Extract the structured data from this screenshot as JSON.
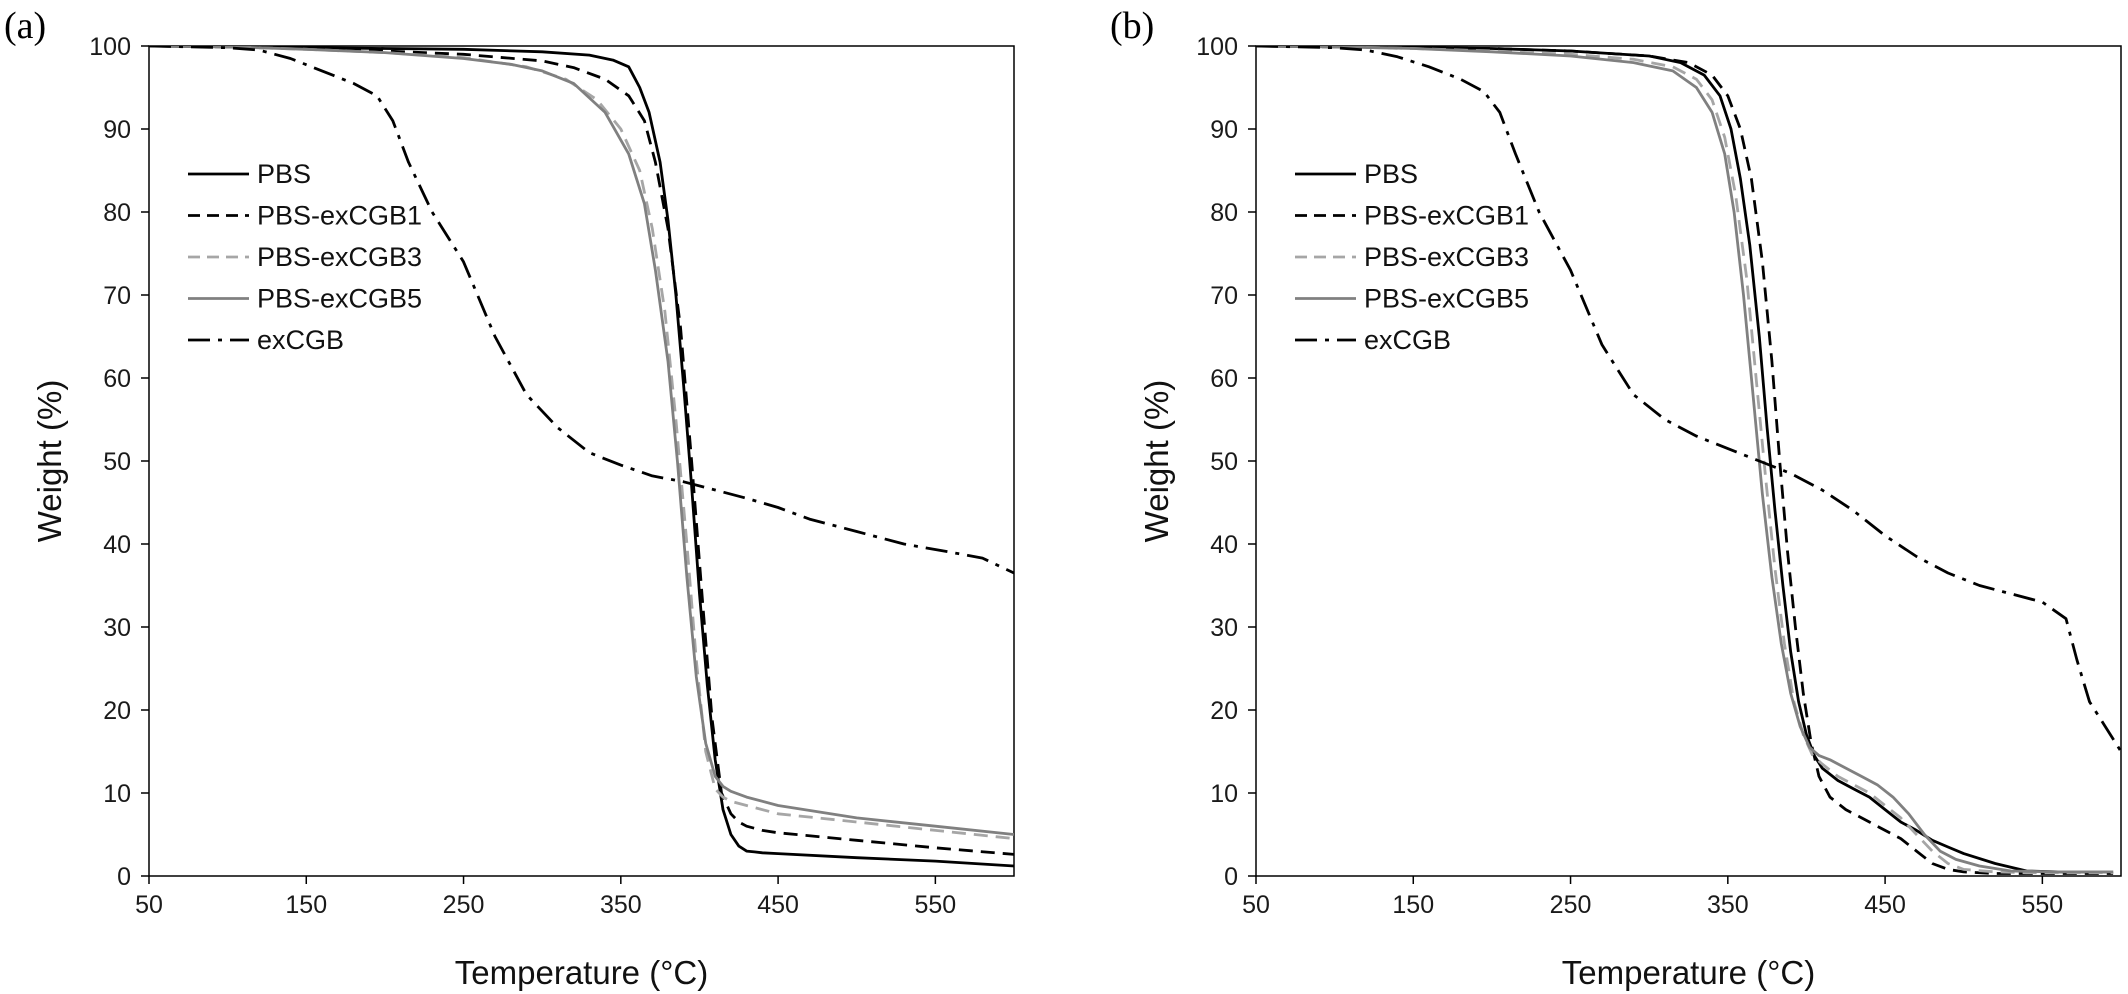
{
  "chart_data": [
    {
      "panel_label": "(a)",
      "type": "line",
      "xlabel": "Temperature (°C)",
      "ylabel": "Weight (%)",
      "xlim": [
        50,
        600
      ],
      "ylim": [
        0,
        100
      ],
      "xticks": [
        50,
        150,
        250,
        350,
        450,
        550
      ],
      "yticks": [
        0,
        10,
        20,
        30,
        40,
        50,
        60,
        70,
        80,
        90,
        100
      ],
      "grid": false,
      "legend_position": "left",
      "series": [
        {
          "name": "PBS",
          "color": "#000000",
          "dash": "solid",
          "x": [
            50,
            100,
            150,
            200,
            250,
            300,
            330,
            345,
            355,
            362,
            368,
            375,
            380,
            385,
            390,
            395,
            400,
            405,
            410,
            415,
            420,
            425,
            430,
            435,
            440,
            450,
            500,
            550,
            600
          ],
          "y": [
            100,
            99.9,
            99.8,
            99.7,
            99.6,
            99.3,
            98.9,
            98.3,
            97.5,
            95,
            92,
            86,
            79,
            70,
            59,
            47,
            34,
            23,
            14,
            8,
            5,
            3.6,
            3,
            2.9,
            2.8,
            2.7,
            2.2,
            1.8,
            1.2
          ]
        },
        {
          "name": "PBS-exCGB1",
          "color": "#000000",
          "dash": "dashed",
          "x": [
            50,
            100,
            150,
            200,
            250,
            300,
            320,
            340,
            355,
            365,
            372,
            380,
            388,
            395,
            402,
            408,
            414,
            420,
            425,
            430,
            440,
            450,
            500,
            550,
            600
          ],
          "y": [
            100,
            99.9,
            99.7,
            99.4,
            99,
            98.2,
            97.4,
            96,
            94,
            91,
            86,
            78,
            66,
            50,
            33,
            19,
            10,
            7.5,
            6.5,
            6,
            5.5,
            5.2,
            4.3,
            3.4,
            2.6
          ]
        },
        {
          "name": "PBS-exCGB3",
          "color": "#a6a6a6",
          "dash": "dashed",
          "x": [
            50,
            100,
            150,
            200,
            250,
            290,
            315,
            335,
            350,
            362,
            370,
            378,
            385,
            392,
            398,
            404,
            410,
            415,
            420,
            430,
            450,
            500,
            550,
            600
          ],
          "y": [
            100,
            99.9,
            99.6,
            99.2,
            98.6,
            97.5,
            96,
            93.5,
            90,
            85,
            78,
            68,
            55,
            40,
            26,
            15,
            10.5,
            9.5,
            9,
            8.5,
            7.5,
            6.5,
            5.5,
            4.5
          ]
        },
        {
          "name": "PBS-exCGB5",
          "color": "#808080",
          "dash": "solid",
          "x": [
            50,
            100,
            150,
            200,
            250,
            280,
            300,
            320,
            340,
            355,
            365,
            372,
            380,
            386,
            392,
            398,
            404,
            410,
            415,
            420,
            430,
            450,
            500,
            550,
            600
          ],
          "y": [
            100,
            99.9,
            99.6,
            99.2,
            98.5,
            97.8,
            97,
            95.5,
            92,
            87,
            81,
            73,
            62,
            50,
            36,
            24,
            16,
            12,
            10.8,
            10.2,
            9.5,
            8.5,
            7,
            6,
            5
          ]
        },
        {
          "name": "exCGB",
          "color": "#000000",
          "dash": "dashdot",
          "x": [
            50,
            100,
            120,
            140,
            160,
            180,
            195,
            205,
            215,
            230,
            250,
            270,
            290,
            310,
            330,
            350,
            370,
            390,
            410,
            430,
            450,
            470,
            500,
            530,
            560,
            580,
            600
          ],
          "y": [
            100,
            99.8,
            99.5,
            98.5,
            97,
            95.5,
            94,
            91,
            86,
            80,
            74,
            65,
            58,
            54,
            51,
            49.5,
            48.2,
            47.5,
            46.5,
            45.5,
            44.4,
            43,
            41.5,
            40,
            39,
            38.3,
            36.5
          ]
        }
      ]
    },
    {
      "panel_label": "(b)",
      "type": "line",
      "xlabel": "Temperature (°C)",
      "ylabel": "Weight (%)",
      "xlim": [
        50,
        600
      ],
      "ylim": [
        0,
        100
      ],
      "xticks": [
        50,
        150,
        250,
        350,
        450,
        550
      ],
      "yticks": [
        0,
        10,
        20,
        30,
        40,
        50,
        60,
        70,
        80,
        90,
        100
      ],
      "grid": false,
      "legend_position": "left",
      "series": [
        {
          "name": "PBS",
          "color": "#000000",
          "dash": "solid",
          "x": [
            50,
            100,
            150,
            200,
            250,
            300,
            320,
            335,
            345,
            352,
            358,
            364,
            370,
            375,
            380,
            385,
            390,
            395,
            400,
            405,
            410,
            420,
            430,
            440,
            450,
            460,
            470,
            480,
            490,
            500,
            520,
            540,
            560,
            595
          ],
          "y": [
            100,
            99.9,
            99.8,
            99.7,
            99.4,
            98.8,
            98,
            96.5,
            94,
            90,
            84,
            76,
            65,
            54,
            44,
            35,
            27,
            21,
            17,
            14.5,
            13,
            11.5,
            10.5,
            9.5,
            8,
            6.5,
            5.5,
            4.3,
            3.5,
            2.7,
            1.5,
            0.6,
            0.5,
            0.5
          ]
        },
        {
          "name": "PBS-exCGB1",
          "color": "#000000",
          "dash": "dashed",
          "x": [
            50,
            100,
            150,
            200,
            250,
            300,
            325,
            340,
            350,
            358,
            365,
            372,
            378,
            383,
            388,
            393,
            398,
            403,
            408,
            415,
            425,
            440,
            450,
            460,
            470,
            480,
            490,
            500,
            520,
            540,
            560,
            595
          ],
          "y": [
            100,
            99.9,
            99.8,
            99.7,
            99.4,
            98.8,
            98,
            96.5,
            94,
            90,
            84,
            74,
            62,
            50,
            39,
            30,
            22,
            16,
            12,
            9.5,
            8,
            6.5,
            5.5,
            4.5,
            3,
            1.5,
            0.8,
            0.5,
            0.3,
            0.3,
            0.3,
            0.3
          ]
        },
        {
          "name": "PBS-exCGB3",
          "color": "#a6a6a6",
          "dash": "dashed",
          "x": [
            50,
            100,
            150,
            200,
            250,
            290,
            315,
            330,
            340,
            348,
            355,
            362,
            368,
            374,
            380,
            386,
            392,
            398,
            404,
            410,
            420,
            430,
            440,
            450,
            460,
            470,
            480,
            490,
            500,
            520,
            540,
            560,
            595
          ],
          "y": [
            100,
            99.9,
            99.7,
            99.4,
            99,
            98.4,
            97.5,
            96,
            93.5,
            89,
            82,
            72,
            60,
            48,
            37,
            28,
            21,
            17,
            14.5,
            13.5,
            12,
            11,
            10,
            8.5,
            7,
            5,
            3,
            1.5,
            0.8,
            0.5,
            0.4,
            0.4,
            0.4
          ]
        },
        {
          "name": "PBS-exCGB5",
          "color": "#808080",
          "dash": "solid",
          "x": [
            50,
            100,
            150,
            200,
            250,
            290,
            315,
            330,
            340,
            348,
            354,
            360,
            366,
            372,
            378,
            384,
            390,
            396,
            402,
            408,
            415,
            425,
            435,
            445,
            455,
            465,
            475,
            485,
            495,
            510,
            530,
            560,
            595
          ],
          "y": [
            100,
            99.9,
            99.7,
            99.3,
            98.8,
            98,
            97,
            95,
            92,
            87,
            80,
            70,
            58,
            46,
            36,
            28,
            22,
            18,
            15.5,
            14.5,
            14,
            13,
            12,
            11,
            9.5,
            7.5,
            5,
            3,
            2,
            1.2,
            0.6,
            0.5,
            0.5
          ]
        },
        {
          "name": "exCGB",
          "color": "#000000",
          "dash": "dashdot",
          "x": [
            50,
            100,
            120,
            140,
            160,
            180,
            195,
            205,
            215,
            230,
            250,
            270,
            290,
            310,
            330,
            350,
            370,
            390,
            410,
            430,
            450,
            470,
            490,
            510,
            530,
            550,
            565,
            572,
            580,
            590,
            600
          ],
          "y": [
            100,
            99.8,
            99.5,
            98.7,
            97.5,
            96,
            94.5,
            92,
            87,
            80,
            73,
            64,
            58,
            55,
            53,
            51.5,
            50,
            48.5,
            46.5,
            44,
            41,
            38.5,
            36.5,
            35,
            34,
            33,
            31,
            26,
            21,
            18,
            15
          ]
        }
      ]
    }
  ]
}
